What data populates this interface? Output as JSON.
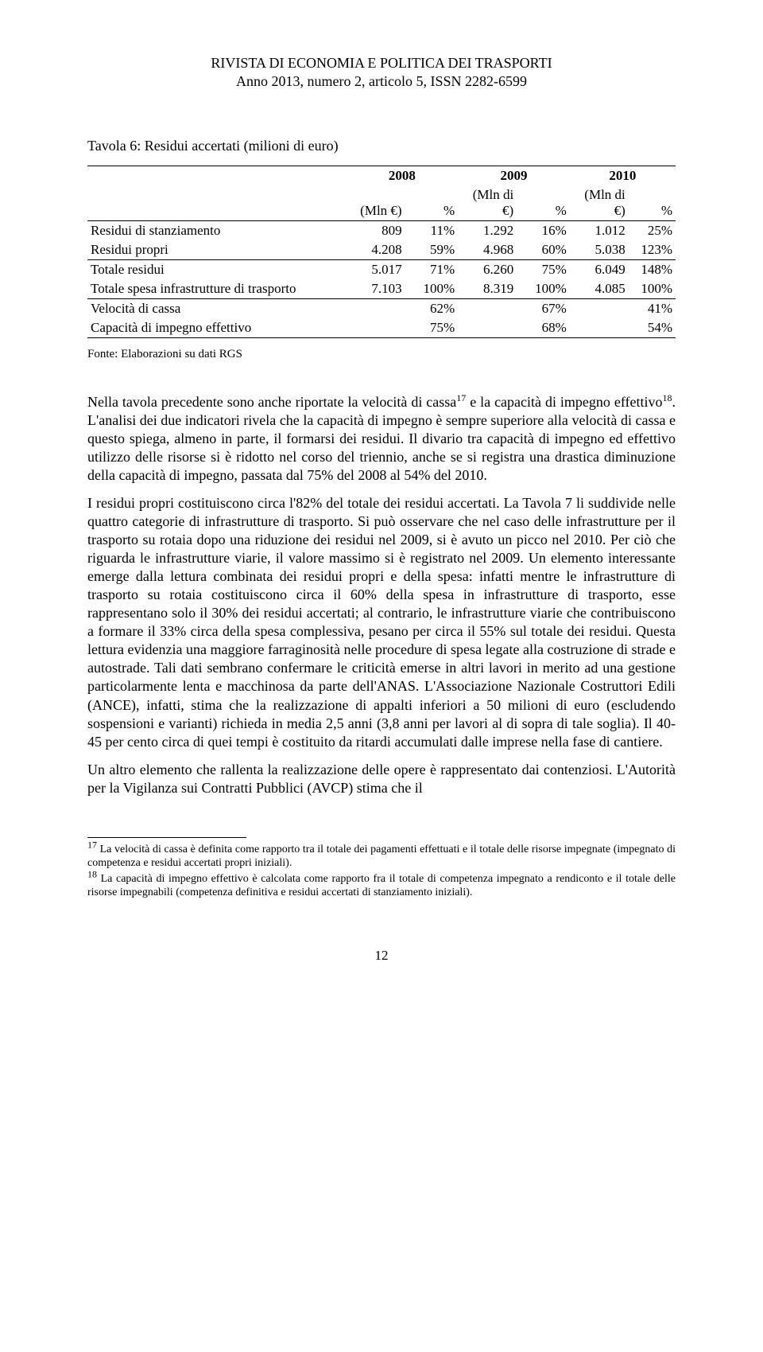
{
  "header": {
    "journal": "RIVISTA DI ECONOMIA E POLITICA DEI TRASPORTI",
    "issue": "Anno 2013, numero 2, articolo 5, ISSN 2282-6599"
  },
  "table": {
    "title": "Tavola 6: Residui accertati (milioni di euro)",
    "years": [
      "2008",
      "2009",
      "2010"
    ],
    "unit_headers": [
      "(Mln €)",
      "%",
      "(Mln di €)",
      "%",
      "(Mln di €)",
      "%"
    ],
    "rows": [
      {
        "label": "Residui di stanziamento",
        "v": [
          "809",
          "11%",
          "1.292",
          "16%",
          "1.012",
          "25%"
        ]
      },
      {
        "label": "Residui propri",
        "v": [
          "4.208",
          "59%",
          "4.968",
          "60%",
          "5.038",
          "123%"
        ]
      },
      {
        "label": "Totale residui",
        "v": [
          "5.017",
          "71%",
          "6.260",
          "75%",
          "6.049",
          "148%"
        ]
      },
      {
        "label": "Totale spesa infrastrutture di trasporto",
        "v": [
          "7.103",
          "100%",
          "8.319",
          "100%",
          "4.085",
          "100%"
        ]
      },
      {
        "label": "Velocità di cassa",
        "v": [
          "",
          "62%",
          "",
          "67%",
          "",
          "41%"
        ]
      },
      {
        "label": "Capacità di impegno effettivo",
        "v": [
          "",
          "75%",
          "",
          "68%",
          "",
          "54%"
        ]
      }
    ],
    "source": "Fonte: Elaborazioni su dati RGS"
  },
  "body": {
    "p1a": "Nella tavola precedente sono anche riportate la velocità di cassa",
    "p1sup1": "17",
    "p1b": " e la capacità di impegno effettivo",
    "p1sup2": "18",
    "p1c": ". L'analisi dei due indicatori rivela che la capacità di impegno è sempre superiore alla velocità di cassa e questo spiega, almeno in parte, il formarsi dei residui. Il divario tra capacità di impegno ed effettivo utilizzo delle risorse si è ridotto nel corso del triennio, anche se si registra una drastica diminuzione della capacità di impegno, passata dal 75% del 2008 al 54% del 2010.",
    "p2": "I residui propri costituiscono circa l'82% del totale dei residui accertati. La Tavola 7 li suddivide nelle quattro categorie di infrastrutture di trasporto. Si può osservare che nel caso delle infrastrutture per il trasporto su rotaia dopo una riduzione dei residui nel 2009, si è avuto un picco nel 2010. Per ciò che riguarda le infrastrutture viarie, il valore massimo si è registrato nel 2009. Un elemento interessante emerge dalla lettura combinata dei residui propri e della spesa: infatti mentre le infrastrutture di trasporto su rotaia costituiscono circa il 60% della spesa in infrastrutture di trasporto, esse rappresentano solo il 30% dei residui accertati; al contrario, le infrastrutture viarie che contribuiscono a formare il 33% circa della spesa complessiva, pesano per circa il 55% sul totale dei residui. Questa lettura evidenzia una maggiore farraginosità nelle procedure di spesa legate alla costruzione di strade e autostrade. Tali dati sembrano confermare le criticità emerse in altri lavori in merito ad una gestione particolarmente lenta e macchinosa da parte dell'ANAS. L'Associazione Nazionale Costruttori Edili (ANCE), infatti, stima che la realizzazione di appalti inferiori a 50 milioni di euro (escludendo sospensioni e varianti) richieda in media 2,5 anni (3,8 anni per lavori al di sopra di tale soglia). Il 40-45 per cento circa di quei tempi è costituito da ritardi accumulati dalle imprese nella fase di cantiere.",
    "p3": "Un altro elemento che rallenta la realizzazione delle opere è rappresentato dai contenziosi. L'Autorità per la Vigilanza sui Contratti Pubblici (AVCP) stima che il"
  },
  "footnotes": {
    "f17sup": "17",
    "f17": " La velocità di cassa è definita come rapporto tra il totale dei pagamenti effettuati e il totale delle risorse impegnate (impegnato di competenza e residui accertati propri iniziali).",
    "f18sup": "18",
    "f18": " La capacità di impegno effettivo è calcolata come rapporto fra il totale di competenza impegnato a rendiconto e il totale delle risorse impegnabili (competenza definitiva e residui accertati di stanziamento iniziali)."
  },
  "page_number": "12"
}
